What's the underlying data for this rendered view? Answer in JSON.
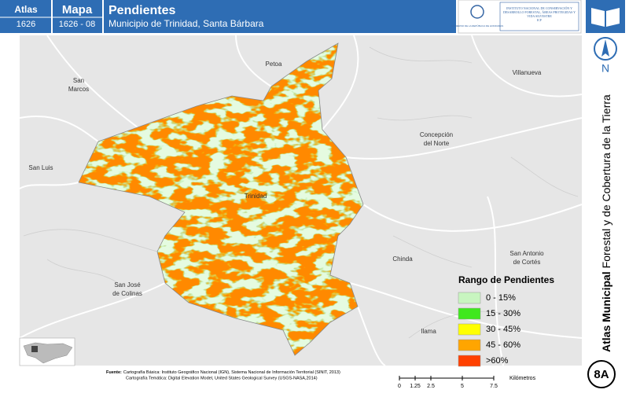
{
  "header": {
    "atlas_label": "Atlas",
    "atlas_code": "1626",
    "map_label": "Mapa",
    "map_code": "1626 - 08",
    "title": "Pendientes",
    "subtitle": "Municipio de Trinidad, Santa Bárbara"
  },
  "logos": {
    "government": "GOBIERNO DE LA REPÚBLICA DE HONDURAS",
    "institute": "INSTITUTO NACIONAL DE CONSERVACIÓN Y DESARROLLO FORESTAL, ÁREAS PROTEGIDAS Y VIDA SILVESTRE",
    "institute_short": "ICF"
  },
  "side_title": {
    "bold": "Atlas Municipal",
    "regular": "Forestal y de Cobertura de la Tierra"
  },
  "north": "N",
  "places": [
    {
      "lines": [
        "Petoa"
      ]
    },
    {
      "lines": [
        "San",
        "Marcos"
      ]
    },
    {
      "lines": [
        "Villanueva"
      ]
    },
    {
      "lines": [
        "Concepción",
        "del Norte"
      ]
    },
    {
      "lines": [
        "San Luis"
      ]
    },
    {
      "lines": [
        "Trinidad"
      ]
    },
    {
      "lines": [
        "Chinda"
      ]
    },
    {
      "lines": [
        "San Antonio",
        "de Cortés"
      ]
    },
    {
      "lines": [
        "San José",
        "de Colinas"
      ]
    },
    {
      "lines": [
        "Ilama"
      ]
    }
  ],
  "legend": {
    "title": "Rango de Pendientes",
    "items": [
      {
        "label": "0 - 15%",
        "color": "#c8f5c0"
      },
      {
        "label": "15 - 30%",
        "color": "#3fe81e"
      },
      {
        "label": "30 - 45%",
        "color": "#ffff00"
      },
      {
        "label": "45 - 60%",
        "color": "#ffa500"
      },
      {
        "label": ">60%",
        "color": "#ff4000"
      }
    ]
  },
  "source": {
    "label": "Fuente:",
    "line1": "Cartografía Básica: Instituto Geográfico Nacional (IGN), Sistema Nacional de Información Territorial (SINIT, 2013)",
    "line2": "Cartografía Temática: Digital Elevation Model, United States Geological Survey (USGS-NASA,2014)"
  },
  "scale": {
    "ticks": [
      0,
      1.25,
      2.5,
      5,
      7.5
    ],
    "unit": "Kilómetros"
  },
  "sheet": "8A"
}
